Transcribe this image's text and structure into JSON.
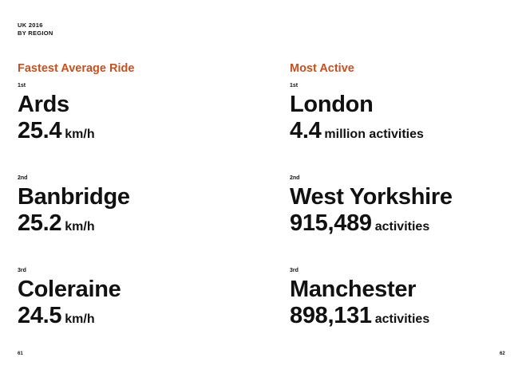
{
  "header": {
    "line1": "UK 2016",
    "line2": "BY REGION"
  },
  "accent_color": "#c8501e",
  "left": {
    "title": "Fastest Average Ride",
    "entries": [
      {
        "rank": "1st",
        "name": "Ards",
        "value": "25.4",
        "unit": "km/h"
      },
      {
        "rank": "2nd",
        "name": "Banbridge",
        "value": "25.2",
        "unit": "km/h"
      },
      {
        "rank": "3rd",
        "name": "Coleraine",
        "value": "24.5",
        "unit": "km/h"
      }
    ]
  },
  "right": {
    "title": "Most Active",
    "entries": [
      {
        "rank": "1st",
        "name": "London",
        "value": "4.4",
        "unit": "million activities"
      },
      {
        "rank": "2nd",
        "name": "West Yorkshire",
        "value": "915,489",
        "unit": "activities"
      },
      {
        "rank": "3rd",
        "name": "Manchester",
        "value": "898,131",
        "unit": "activities"
      }
    ]
  },
  "pages": {
    "left": "61",
    "right": "62"
  }
}
